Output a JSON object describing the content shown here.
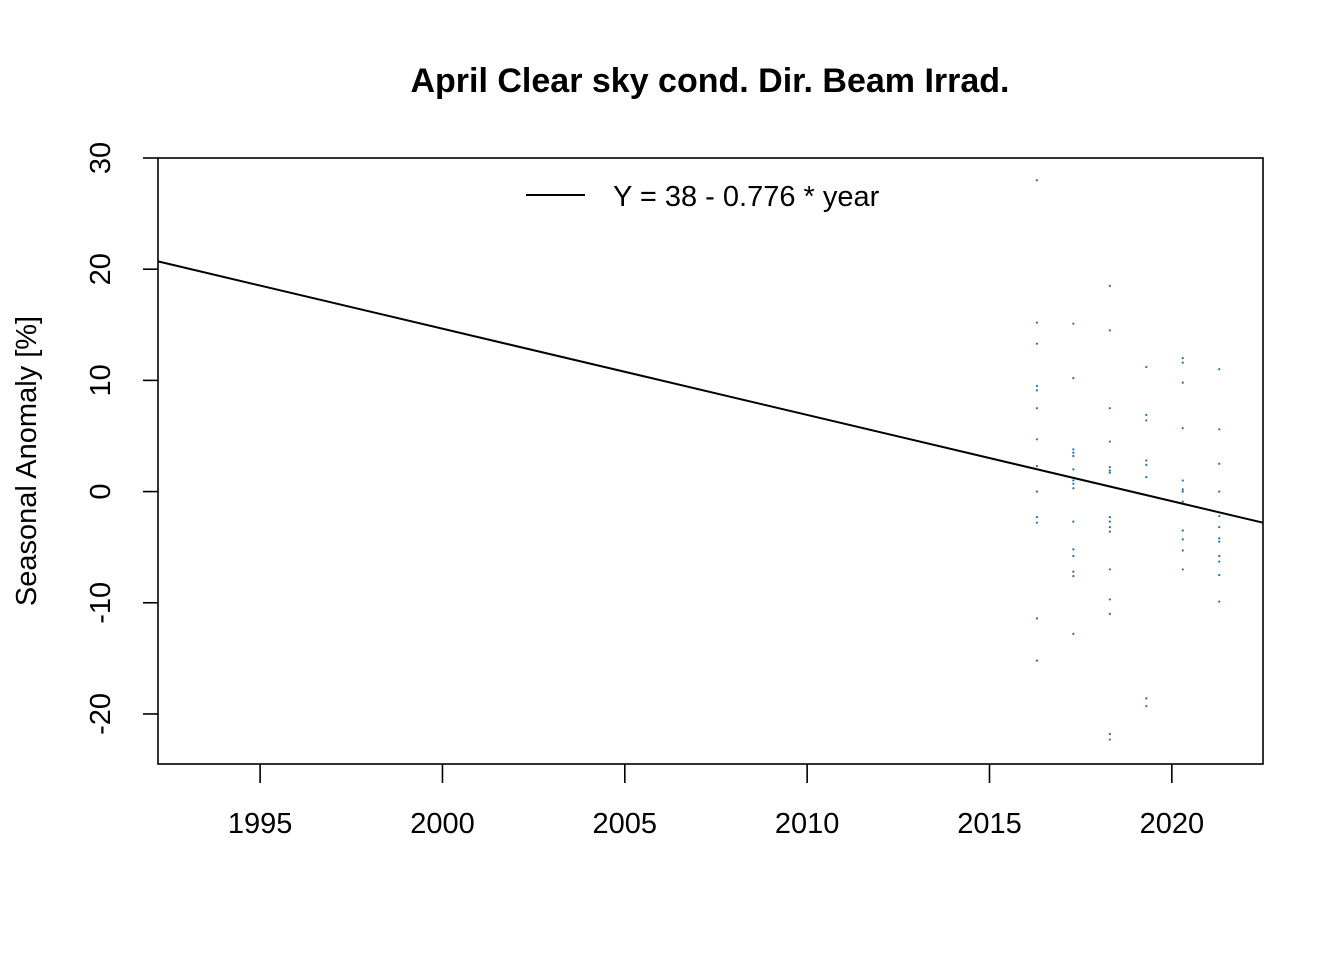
{
  "chart_data": {
    "type": "scatter",
    "title": "April Clear sky cond. Dir. Beam Irrad.",
    "xlabel": "",
    "ylabel": "Seasonal Anomaly [%]",
    "xlim": [
      1992.2,
      2022.5
    ],
    "ylim": [
      -24.5,
      30
    ],
    "x_ticks": [
      1995,
      2000,
      2005,
      2010,
      2015,
      2020
    ],
    "y_ticks": [
      -20,
      -10,
      0,
      10,
      20,
      30
    ],
    "grid": false,
    "legend": {
      "position": "top",
      "entries": [
        "Y = 38 - 0.776 * year"
      ]
    },
    "point_color": "#1f6fb4",
    "trend_line": {
      "label": "Y = 38 - 0.776 * year",
      "x": [
        1992.2,
        2022.5
      ],
      "y": [
        20.7,
        -2.8
      ]
    },
    "series": [
      {
        "x": [
          2016.3,
          2016.3,
          2016.3,
          2016.3,
          2016.3,
          2016.3,
          2016.3,
          2016.3,
          2016.3,
          2016.3,
          2016.3,
          2016.3,
          2016.3,
          2017.3,
          2017.3,
          2017.3,
          2017.3,
          2017.3,
          2017.3,
          2017.3,
          2017.3,
          2017.3,
          2017.3,
          2017.3,
          2017.3,
          2017.3,
          2017.3,
          2017.3,
          2018.3,
          2018.3,
          2018.3,
          2018.3,
          2018.3,
          2018.3,
          2018.3,
          2018.3,
          2018.3,
          2018.3,
          2018.3,
          2018.3,
          2018.3,
          2018.3,
          2018.3,
          2018.3,
          2019.3,
          2019.3,
          2019.3,
          2019.3,
          2019.3,
          2019.3,
          2019.3,
          2019.3,
          2020.3,
          2020.3,
          2020.3,
          2020.3,
          2020.3,
          2020.3,
          2020.3,
          2020.3,
          2020.3,
          2020.3,
          2020.3,
          2020.3,
          2021.3,
          2021.3,
          2021.3,
          2021.3,
          2021.3,
          2021.3,
          2021.3,
          2021.3,
          2021.3,
          2021.3,
          2021.3,
          2021.3
        ],
        "y": [
          28.0,
          15.2,
          13.3,
          9.5,
          7.5,
          4.7,
          2.3,
          0.0,
          -2.3,
          -2.8,
          -11.4,
          -15.2,
          9.1,
          15.1,
          10.2,
          3.8,
          3.2,
          2.0,
          1.0,
          0.3,
          -2.7,
          -5.2,
          -5.8,
          -7.2,
          -7.6,
          -12.8,
          3.5,
          0.7,
          18.5,
          14.5,
          7.5,
          4.5,
          2.2,
          1.7,
          -2.3,
          -2.7,
          -3.2,
          -3.6,
          -7.0,
          -9.7,
          -11.0,
          -21.8,
          -22.3,
          1.9,
          11.2,
          6.9,
          6.4,
          2.8,
          2.4,
          1.3,
          -18.6,
          -19.3,
          12.0,
          11.6,
          9.8,
          5.7,
          1.0,
          0.2,
          -0.9,
          -3.5,
          -4.3,
          -5.3,
          -7.0,
          0.0,
          11.0,
          5.6,
          2.5,
          0.0,
          -2.2,
          -3.2,
          -4.2,
          -4.5,
          -5.8,
          -6.3,
          -7.5,
          -9.9
        ]
      }
    ]
  }
}
